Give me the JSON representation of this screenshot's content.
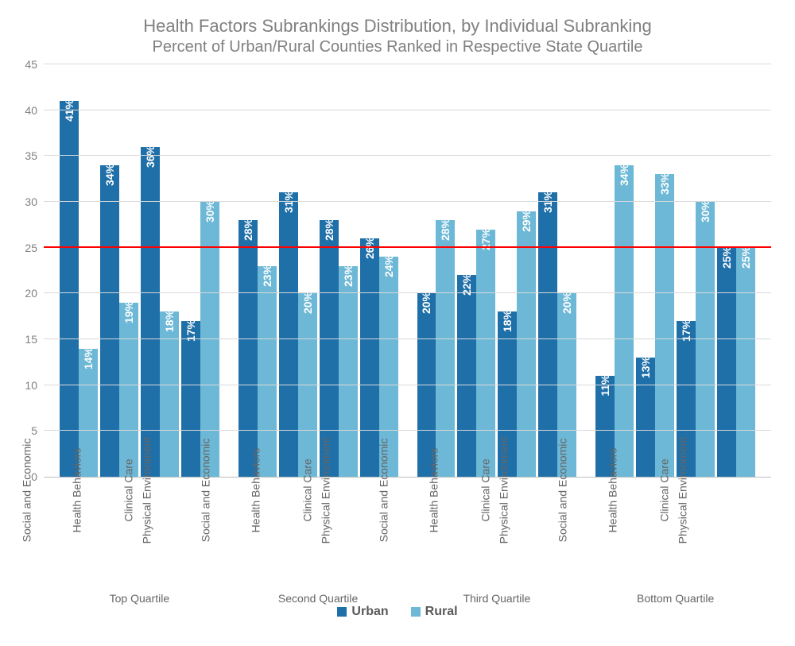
{
  "chart": {
    "type": "grouped-bar",
    "title": "Health Factors Subrankings Distribution, by Individual Subranking",
    "subtitle": "Percent of Urban/Rural Counties Ranked in Respective State Quartile",
    "background_color": "#ffffff",
    "grid_color": "#d9d9d9",
    "axis_color": "#bfbfbf",
    "text_color": "#808080",
    "ylim": [
      0,
      45
    ],
    "ytick_step": 5,
    "yticks": [
      0,
      5,
      10,
      15,
      20,
      25,
      30,
      35,
      40,
      45
    ],
    "reference_line": {
      "value": 25,
      "color": "#ff0000",
      "width": 2
    },
    "title_fontsize": 22,
    "subtitle_fontsize": 20,
    "axis_label_fontsize": 14,
    "bar_label_fontsize": 14,
    "bar_label_color": "#ffffff",
    "bar_label_weight": "700",
    "series": [
      {
        "name": "Urban",
        "color": "#1f6fa8"
      },
      {
        "name": "Rural",
        "color": "#6db8d6"
      }
    ],
    "categories": [
      "Social and Economic",
      "Health Behaviors",
      "Clinical Care",
      "Physical Environment"
    ],
    "groups": [
      {
        "label": "Top Quartile",
        "bars": [
          {
            "category": "Social and Economic",
            "urban": 41,
            "rural": 14
          },
          {
            "category": "Health Behaviors",
            "urban": 34,
            "rural": 19
          },
          {
            "category": "Clinical Care",
            "urban": 36,
            "rural": 18
          },
          {
            "category": "Physical Environment",
            "urban": 17,
            "rural": 30
          }
        ]
      },
      {
        "label": "Second Quartile",
        "bars": [
          {
            "category": "Social and Economic",
            "urban": 28,
            "rural": 23
          },
          {
            "category": "Health Behaviors",
            "urban": 31,
            "rural": 20
          },
          {
            "category": "Clinical Care",
            "urban": 28,
            "rural": 23
          },
          {
            "category": "Physical Environment",
            "urban": 26,
            "rural": 24
          }
        ]
      },
      {
        "label": "Third Quartile",
        "bars": [
          {
            "category": "Social and Economic",
            "urban": 20,
            "rural": 28
          },
          {
            "category": "Health Behaviors",
            "urban": 22,
            "rural": 27
          },
          {
            "category": "Clinical Care",
            "urban": 18,
            "rural": 29
          },
          {
            "category": "Physical Environment",
            "urban": 31,
            "rural": 20
          }
        ]
      },
      {
        "label": "Bottom Quartile",
        "bars": [
          {
            "category": "Social and Economic",
            "urban": 11,
            "rural": 34
          },
          {
            "category": "Health Behaviors",
            "urban": 13,
            "rural": 33
          },
          {
            "category": "Clinical Care",
            "urban": 17,
            "rural": 30
          },
          {
            "category": "Physical Environment",
            "urban": 25,
            "rural": 25
          }
        ]
      }
    ],
    "legend": {
      "urban_label": "Urban",
      "rural_label": "Rural",
      "position": "bottom-center",
      "fontsize": 16,
      "fontweight": "700"
    }
  }
}
